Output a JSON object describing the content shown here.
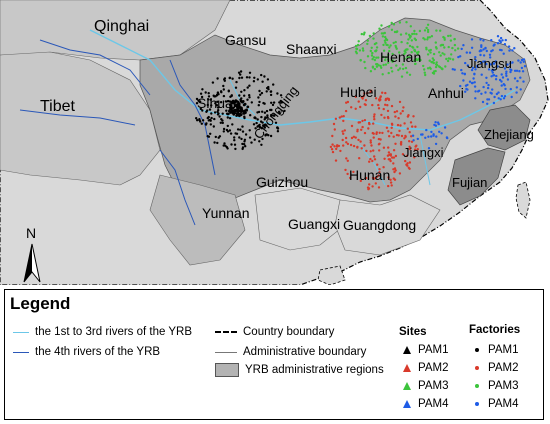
{
  "map": {
    "regions": [
      "Qinghai",
      "Gansu",
      "Shaanxi",
      "Henan",
      "Jiangsu",
      "Tibet",
      "Sihuan",
      "Chongqing",
      "Hubei",
      "Anhui",
      "Zhejiang",
      "Jiangxi",
      "Hunan",
      "Guizhou",
      "Fujian",
      "Yunnan",
      "Guangxi",
      "Guangdong"
    ],
    "north_label": "N",
    "colors": {
      "ocean": "#ffffff",
      "background_land": "#d9d9d9",
      "yrb_region": "#b3b3b3",
      "dark_region": "#8c8c8c",
      "river_main": "#6cc7e8",
      "river_4th": "#2a57b8",
      "pam1": "#000000",
      "pam2": "#d93a2b",
      "pam3": "#3cc43c",
      "pam4": "#1e5ce6"
    }
  },
  "legend": {
    "title": "Legend",
    "items": [
      "the 1st to 3rd rivers of the YRB",
      "the 4th rivers of the YRB",
      "Country boundary",
      "Administrative boundary",
      "YRB administrative regions"
    ],
    "sites_header": "Sites",
    "factories_header": "Factories",
    "sites": [
      "PAM1",
      "PAM2",
      "PAM3",
      "PAM4"
    ],
    "factories": [
      "PAM1",
      "PAM2",
      "PAM3",
      "PAM4"
    ]
  }
}
